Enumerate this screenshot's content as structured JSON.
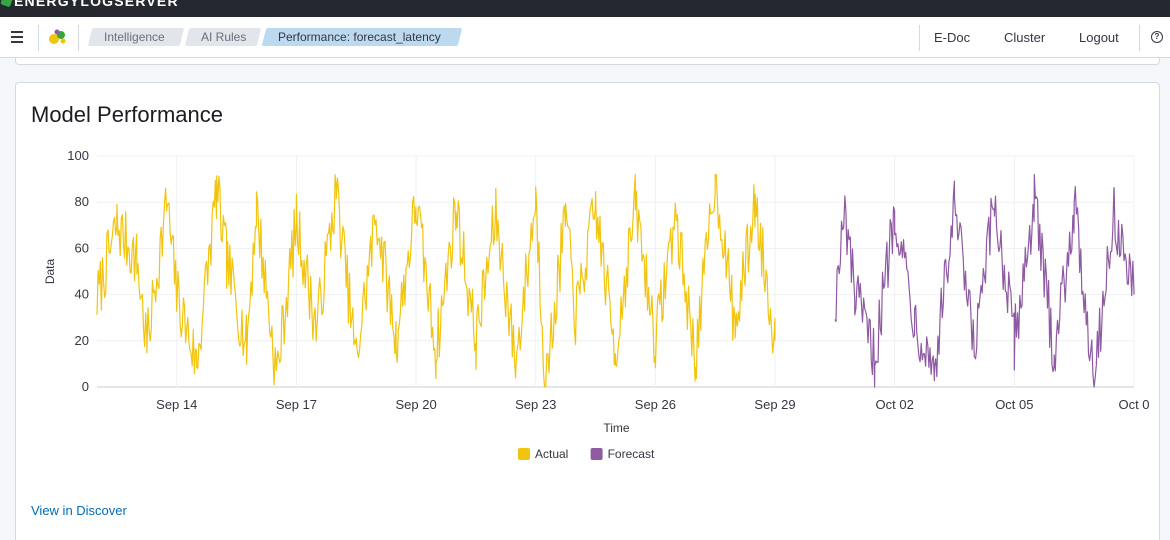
{
  "topbar": {
    "brand": "ENERGYLOGSERVER"
  },
  "header": {
    "menu_icon": "hamburger-menu-icon",
    "logo_icon": "energylogserver-logo-icon",
    "breadcrumbs": [
      {
        "label": "Intelligence"
      },
      {
        "label": "AI Rules"
      },
      {
        "label": "Performance: forecast_latency"
      }
    ],
    "links": {
      "edoc": "E-Doc",
      "cluster": "Cluster",
      "logout": "Logout"
    },
    "help_glyph": "?"
  },
  "panel": {
    "title": "Model Performance",
    "view_link": "View in Discover"
  },
  "colors": {
    "actual": "#f1c40f",
    "forecast": "#8e5aa2"
  },
  "chart_data": {
    "type": "line",
    "xlabel": "Time",
    "ylabel": "Data",
    "ylim": [
      0,
      100
    ],
    "yticks": [
      0,
      20,
      40,
      60,
      80,
      100
    ],
    "x_tick_labels": [
      "Sep 14",
      "Sep 17",
      "Sep 20",
      "Sep 23",
      "Sep 26",
      "Sep 29",
      "Oct 02",
      "Oct 05",
      "Oct 0"
    ],
    "x_tick_dates": [
      "2023-09-14",
      "2023-09-17",
      "2023-09-20",
      "2023-09-23",
      "2023-09-26",
      "2023-09-29",
      "2023-10-02",
      "2023-10-05",
      "2023-10-08"
    ],
    "xlim": [
      "2023-09-12",
      "2023-10-08"
    ],
    "legend_position": "bottom-center",
    "grid": true,
    "series": [
      {
        "name": "Actual",
        "range": [
          "2023-09-12",
          "2023-09-29"
        ],
        "points": [
          [
            "2023-09-12",
            38
          ],
          [
            "2023-09-12T12:00",
            70
          ],
          [
            "2023-09-13",
            55
          ],
          [
            "2023-09-13T06:00",
            18
          ],
          [
            "2023-09-13T18:00",
            80
          ],
          [
            "2023-09-14",
            40
          ],
          [
            "2023-09-14T12:00",
            10
          ],
          [
            "2023-09-15",
            85
          ],
          [
            "2023-09-15T06:00",
            55
          ],
          [
            "2023-09-15T18:00",
            18
          ],
          [
            "2023-09-16",
            78
          ],
          [
            "2023-09-16T12:00",
            5
          ],
          [
            "2023-09-17",
            72
          ],
          [
            "2023-09-17T12:00",
            25
          ],
          [
            "2023-09-18",
            85
          ],
          [
            "2023-09-18T12:00",
            12
          ],
          [
            "2023-09-19",
            75
          ],
          [
            "2023-09-19T12:00",
            20
          ],
          [
            "2023-09-20",
            80
          ],
          [
            "2023-09-20T12:00",
            15
          ],
          [
            "2023-09-21",
            78
          ],
          [
            "2023-09-21T12:00",
            20
          ],
          [
            "2023-09-22",
            75
          ],
          [
            "2023-09-22T12:00",
            10
          ],
          [
            "2023-09-23",
            82
          ],
          [
            "2023-09-23T06:00",
            0
          ],
          [
            "2023-09-23T18:00",
            75
          ],
          [
            "2023-09-24",
            30
          ],
          [
            "2023-09-24T12:00",
            78
          ],
          [
            "2023-09-25",
            15
          ],
          [
            "2023-09-25T12:00",
            80
          ],
          [
            "2023-09-26",
            20
          ],
          [
            "2023-09-26T12:00",
            75
          ],
          [
            "2023-09-27",
            12
          ],
          [
            "2023-09-27T12:00",
            92
          ],
          [
            "2023-09-28",
            25
          ],
          [
            "2023-09-28T12:00",
            80
          ],
          [
            "2023-09-29",
            20
          ]
        ]
      },
      {
        "name": "Forecast",
        "range": [
          "2023-09-30T12:00",
          "2023-10-08"
        ],
        "points": [
          [
            "2023-09-30T12:00",
            35
          ],
          [
            "2023-09-30T18:00",
            75
          ],
          [
            "2023-10-01",
            40
          ],
          [
            "2023-10-01T12:00",
            12
          ],
          [
            "2023-10-02",
            78
          ],
          [
            "2023-10-02T12:00",
            30
          ],
          [
            "2023-10-03",
            8
          ],
          [
            "2023-10-03T12:00",
            78
          ],
          [
            "2023-10-04",
            15
          ],
          [
            "2023-10-04T12:00",
            80
          ],
          [
            "2023-10-05",
            20
          ],
          [
            "2023-10-05T12:00",
            80
          ],
          [
            "2023-10-06",
            15
          ],
          [
            "2023-10-06T12:00",
            78
          ],
          [
            "2023-10-07",
            5
          ],
          [
            "2023-10-07T12:00",
            75
          ],
          [
            "2023-10-08",
            40
          ]
        ]
      }
    ]
  }
}
